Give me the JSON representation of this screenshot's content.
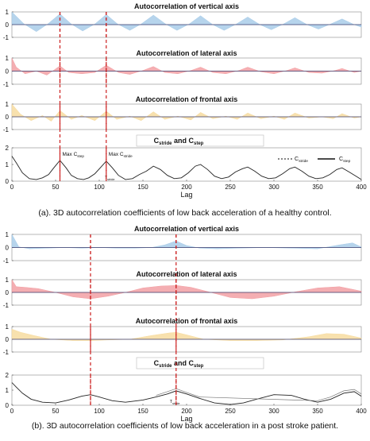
{
  "colors": {
    "vertical": "#a9cde9",
    "lateral": "#f2a0a4",
    "frontal": "#f7dca0",
    "marker": "#cc1f1f",
    "line": "#222222",
    "axis": "#555555"
  },
  "captions": {
    "a": "(a). 3D autocorrelation coefficients of low back acceleration of a healthy control.",
    "b": "(b). 3D autocorrelation coefficients of low back acceleration in a post stroke patient."
  },
  "chart_data": [
    {
      "panel": "a",
      "type": "area",
      "title": "Autocorrelation of vertical axis",
      "xlim": [
        0,
        400
      ],
      "ylim": [
        -1,
        1
      ],
      "yticks": [
        1,
        0,
        -1
      ],
      "markers": [
        55,
        108
      ],
      "x": [
        0,
        14,
        28,
        41,
        55,
        68,
        81,
        95,
        108,
        121,
        135,
        148,
        162,
        176,
        189,
        203,
        216,
        230,
        243,
        257,
        270,
        284,
        297,
        311,
        324,
        338,
        351,
        365,
        378,
        392,
        400
      ],
      "y": [
        1.0,
        0.05,
        -0.55,
        0.05,
        0.85,
        0.05,
        -0.5,
        0.05,
        0.8,
        0.05,
        -0.45,
        0.05,
        0.75,
        0.05,
        -0.45,
        0.05,
        0.7,
        0.0,
        -0.45,
        0.05,
        0.6,
        0.0,
        -0.4,
        0.05,
        0.55,
        0.0,
        -0.35,
        0.05,
        0.45,
        0.0,
        -0.2
      ]
    },
    {
      "panel": "a",
      "type": "area",
      "title": "Autocorrelation of lateral axis",
      "xlim": [
        0,
        400
      ],
      "ylim": [
        -1,
        1
      ],
      "yticks": [
        1,
        0,
        -1
      ],
      "markers": [
        55,
        108
      ],
      "x": [
        0,
        5,
        15,
        28,
        40,
        55,
        65,
        80,
        95,
        108,
        122,
        135,
        150,
        162,
        175,
        190,
        205,
        216,
        230,
        245,
        260,
        270,
        285,
        300,
        315,
        324,
        340,
        355,
        370,
        378,
        392,
        400
      ],
      "y": [
        1.0,
        0.3,
        -0.2,
        0.0,
        -0.3,
        0.4,
        -0.1,
        -0.2,
        -0.1,
        0.45,
        -0.1,
        -0.25,
        0.05,
        0.35,
        -0.1,
        -0.2,
        0.05,
        0.3,
        -0.1,
        -0.2,
        0.05,
        0.3,
        -0.05,
        -0.2,
        0.05,
        0.25,
        -0.1,
        -0.15,
        0.05,
        0.2,
        -0.1,
        0.0
      ]
    },
    {
      "panel": "a",
      "type": "area",
      "title": "Autocorrelation of frontal axis",
      "xlim": [
        0,
        400
      ],
      "ylim": [
        -1,
        1
      ],
      "yticks": [
        1,
        0,
        -1
      ],
      "markers": [
        55,
        108
      ],
      "x": [
        0,
        10,
        22,
        35,
        45,
        55,
        68,
        80,
        95,
        108,
        120,
        135,
        148,
        162,
        175,
        190,
        205,
        216,
        230,
        245,
        258,
        270,
        285,
        300,
        312,
        324,
        340,
        355,
        368,
        378,
        392,
        400
      ],
      "y": [
        1.0,
        0.2,
        -0.3,
        0.1,
        -0.35,
        0.5,
        -0.2,
        0.1,
        -0.3,
        0.45,
        -0.2,
        0.05,
        -0.3,
        0.4,
        -0.2,
        0.05,
        -0.25,
        0.35,
        -0.15,
        0.05,
        -0.2,
        0.3,
        -0.15,
        0.05,
        -0.2,
        0.3,
        -0.1,
        0.0,
        -0.15,
        0.25,
        -0.1,
        0.0
      ]
    },
    {
      "panel": "a",
      "type": "line",
      "title": "Cstride and Cstep",
      "title_main": "C",
      "title_sub1": "stride",
      "title_and": " and C",
      "title_sub2": "step",
      "xlabel": "Lag",
      "xlim": [
        0,
        400
      ],
      "ylim": [
        0,
        2
      ],
      "xticks": [
        0,
        50,
        100,
        150,
        200,
        250,
        300,
        350,
        400
      ],
      "yticks": [
        2,
        1,
        0
      ],
      "markers": [
        55,
        108
      ],
      "annotations": [
        "Max Cstep",
        "Max Cstride",
        "Tstride"
      ],
      "legend": [
        "Cstride",
        "Cstep"
      ],
      "legend_sub_main": "C",
      "legend_sub1": "stride",
      "legend_sub2": "step",
      "max_label_main": "Max C",
      "max_label_step": "step",
      "max_label_stride": "stride",
      "t_label_main": "T",
      "t_label_sub": "stride",
      "series": [
        {
          "x": [
            0,
            5,
            12,
            20,
            28,
            35,
            42,
            48,
            55,
            62,
            68,
            75,
            82,
            88,
            95,
            102,
            108,
            115,
            122,
            130,
            138,
            146,
            154,
            162,
            170,
            178,
            186,
            194,
            202,
            210,
            216,
            224,
            232,
            240,
            248,
            256,
            264,
            270,
            278,
            286,
            294,
            302,
            310,
            318,
            324,
            332,
            340,
            348,
            356,
            364,
            372,
            378,
            386,
            394,
            400
          ],
          "y": [
            1.5,
            1.1,
            0.5,
            0.15,
            0.1,
            0.2,
            0.4,
            0.8,
            1.25,
            0.8,
            0.35,
            0.15,
            0.1,
            0.2,
            0.45,
            0.85,
            1.2,
            0.8,
            0.35,
            0.1,
            0.15,
            0.4,
            0.6,
            0.9,
            0.7,
            0.35,
            0.15,
            0.2,
            0.5,
            0.9,
            1.0,
            0.7,
            0.3,
            0.15,
            0.25,
            0.55,
            0.75,
            0.85,
            0.6,
            0.3,
            0.15,
            0.2,
            0.45,
            0.75,
            0.85,
            0.6,
            0.3,
            0.15,
            0.2,
            0.4,
            0.7,
            0.8,
            0.55,
            0.3,
            0.1
          ]
        }
      ]
    },
    {
      "panel": "b",
      "type": "area",
      "title": "Autocorrelation of vertical axis",
      "xlim": [
        0,
        400
      ],
      "ylim": [
        -1,
        1
      ],
      "yticks": [
        1,
        0,
        -1
      ],
      "markers": [
        90,
        188
      ],
      "x": [
        0,
        8,
        20,
        40,
        60,
        80,
        100,
        120,
        140,
        160,
        175,
        188,
        200,
        215,
        235,
        260,
        290,
        320,
        350,
        375,
        390,
        400
      ],
      "y": [
        1.0,
        0.05,
        -0.1,
        -0.05,
        0.0,
        -0.05,
        0.0,
        -0.05,
        -0.05,
        0.0,
        0.2,
        0.5,
        0.15,
        -0.05,
        -0.1,
        -0.05,
        0.0,
        -0.05,
        -0.1,
        0.2,
        0.35,
        0.05
      ]
    },
    {
      "panel": "b",
      "type": "area",
      "title": "Autocorrelation of lateral axis",
      "xlim": [
        0,
        400
      ],
      "ylim": [
        -1,
        1
      ],
      "yticks": [
        1,
        0,
        -1
      ],
      "markers": [
        90,
        188
      ],
      "x": [
        0,
        5,
        15,
        30,
        50,
        70,
        90,
        110,
        130,
        150,
        170,
        188,
        205,
        225,
        250,
        275,
        300,
        325,
        350,
        375,
        400
      ],
      "y": [
        1.0,
        0.45,
        0.4,
        0.3,
        0.0,
        -0.35,
        -0.5,
        -0.3,
        0.0,
        0.35,
        0.5,
        0.55,
        0.4,
        0.05,
        -0.4,
        -0.5,
        -0.3,
        0.05,
        0.35,
        0.45,
        0.1
      ]
    },
    {
      "panel": "b",
      "type": "area",
      "title": "Autocorrelation of frontal axis",
      "xlim": [
        0,
        400
      ],
      "ylim": [
        -1,
        1
      ],
      "yticks": [
        1,
        0,
        -1
      ],
      "markers": [
        90,
        188
      ],
      "x": [
        0,
        10,
        25,
        45,
        70,
        90,
        110,
        135,
        160,
        180,
        188,
        200,
        220,
        250,
        280,
        310,
        340,
        360,
        380,
        400
      ],
      "y": [
        0.8,
        0.55,
        0.3,
        0.0,
        -0.1,
        -0.1,
        -0.05,
        0.0,
        0.3,
        0.5,
        0.55,
        0.35,
        0.0,
        -0.1,
        -0.1,
        -0.05,
        0.2,
        0.45,
        0.4,
        0.1
      ]
    },
    {
      "panel": "b",
      "type": "line",
      "title": "Cstride and Cstep",
      "title_main": "C",
      "title_sub1": "stride",
      "title_and": " and C",
      "title_sub2": "step",
      "xlabel": "Lag",
      "xlim": [
        0,
        400
      ],
      "ylim": [
        0,
        2
      ],
      "xticks": [
        0,
        50,
        100,
        150,
        200,
        250,
        300,
        350,
        400
      ],
      "yticks": [
        2,
        1,
        0
      ],
      "markers": [
        90,
        188
      ],
      "annotations": [
        "Tstride"
      ],
      "t_label_main": "T",
      "t_label_sub": "stride",
      "series": [
        {
          "x": [
            0,
            5,
            12,
            22,
            35,
            50,
            65,
            80,
            90,
            100,
            115,
            130,
            150,
            165,
            178,
            188,
            200,
            215,
            232,
            250,
            265,
            280,
            300,
            320,
            335,
            350,
            365,
            380,
            392,
            400
          ],
          "y": [
            1.5,
            1.2,
            0.8,
            0.4,
            0.2,
            0.15,
            0.35,
            0.6,
            0.7,
            0.55,
            0.3,
            0.2,
            0.35,
            0.55,
            0.75,
            0.95,
            0.75,
            0.45,
            0.15,
            0.05,
            0.15,
            0.4,
            0.7,
            0.65,
            0.4,
            0.2,
            0.4,
            0.8,
            0.9,
            0.6
          ]
        },
        {
          "x": [
            165,
            178,
            188,
            200,
            215,
            350,
            365,
            380,
            392,
            400
          ],
          "y": [
            0.65,
            0.9,
            1.1,
            0.85,
            0.55,
            0.3,
            0.55,
            0.95,
            1.05,
            0.75
          ]
        }
      ]
    }
  ]
}
